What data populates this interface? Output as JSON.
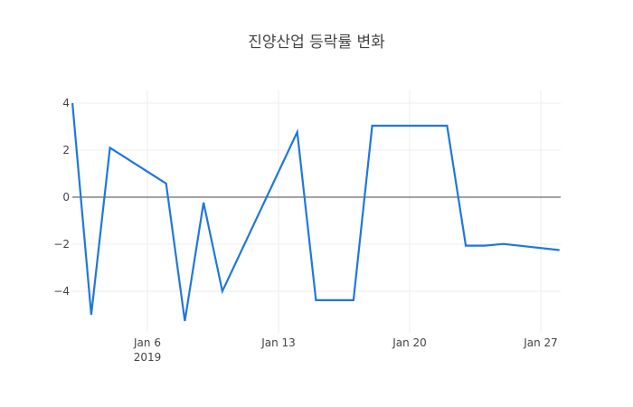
{
  "chart_data": {
    "type": "line",
    "title": "진양산업 등락률 변화",
    "xlabel": "",
    "ylabel": "",
    "series": [
      {
        "name": "등락률",
        "color": "#1f77e0",
        "x": [
          "2019-01-02",
          "2019-01-03",
          "2019-01-04",
          "2019-01-07",
          "2019-01-08",
          "2019-01-09",
          "2019-01-10",
          "2019-01-14",
          "2019-01-15",
          "2019-01-17",
          "2019-01-18",
          "2019-01-22",
          "2019-01-23",
          "2019-01-24",
          "2019-01-25",
          "2019-01-28"
        ],
        "values": [
          4.0,
          -5.0,
          2.1,
          0.58,
          -5.27,
          -0.23,
          -4.0,
          2.77,
          -4.38,
          -4.38,
          3.04,
          3.04,
          -2.06,
          -2.06,
          -1.99,
          -2.25
        ]
      }
    ],
    "x_ticks": [
      {
        "label": "Jan 6",
        "sublabel": "2019",
        "date": "2019-01-06"
      },
      {
        "label": "Jan 13",
        "sublabel": "",
        "date": "2019-01-13"
      },
      {
        "label": "Jan 20",
        "sublabel": "",
        "date": "2019-01-20"
      },
      {
        "label": "Jan 27",
        "sublabel": "",
        "date": "2019-01-27"
      }
    ],
    "y_ticks": [
      4,
      2,
      0,
      -2,
      -4
    ],
    "y_tick_labels": [
      "4",
      "2",
      "0",
      "−2",
      "−4"
    ],
    "xlim": [
      "2019-01-02",
      "2019-01-28"
    ],
    "ylim": [
      -5.7,
      4.5
    ],
    "grid": true,
    "zero_line": true,
    "legend": "none"
  }
}
